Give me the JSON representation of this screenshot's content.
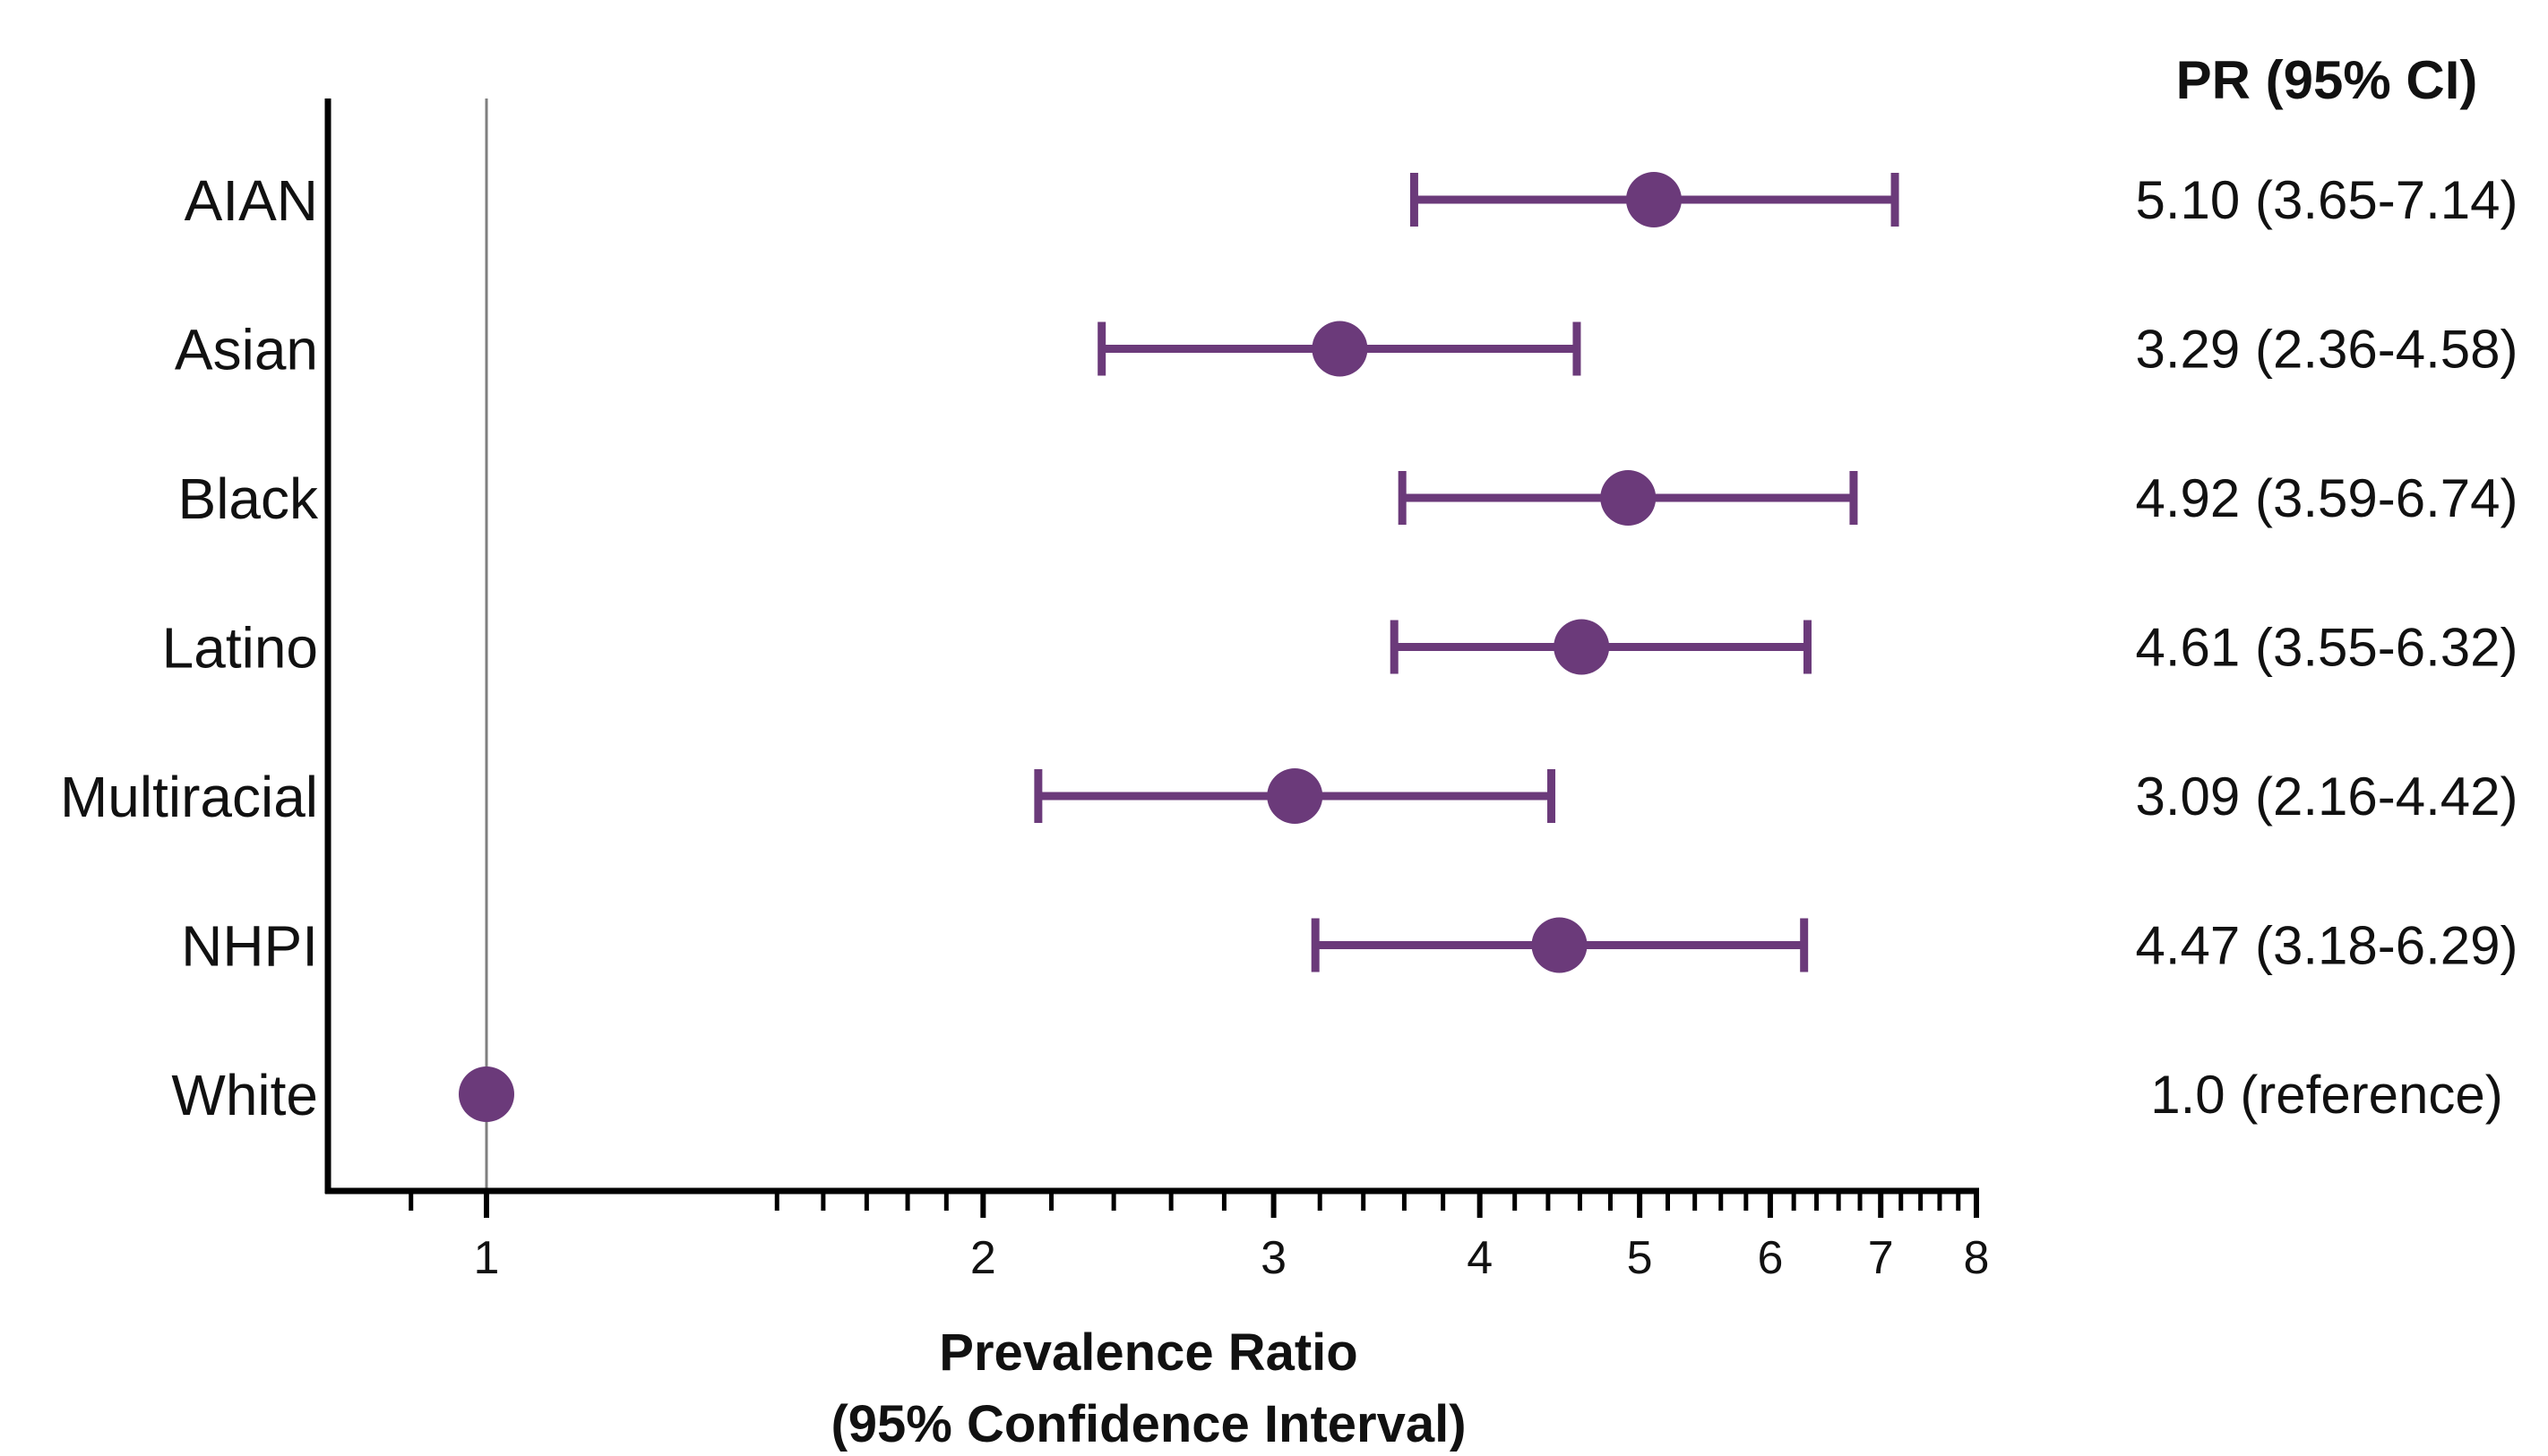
{
  "colors": {
    "marker": "#6b3a7a",
    "axis": "#000000",
    "reference_line": "#7f7f7f",
    "text": "#111111"
  },
  "chart_data": {
    "type": "scatter",
    "subtype": "forest-plot",
    "x_scale": "log",
    "xlim": [
      0.8,
      8
    ],
    "x_ticks": [
      1,
      2,
      3,
      4,
      5,
      6,
      7,
      8
    ],
    "x_tick_labels": [
      "1",
      "2",
      "3",
      "4",
      "5",
      "6",
      "7",
      "8"
    ],
    "x_minor_ticks": [
      0.9,
      1.5,
      1.6,
      1.7,
      1.8,
      1.9,
      2.2,
      2.4,
      2.6,
      2.8,
      3.2,
      3.4,
      3.6,
      3.8,
      4.2,
      4.4,
      4.6,
      4.8,
      5.2,
      5.4,
      5.6,
      5.8,
      6.2,
      6.4,
      6.6,
      6.8,
      7.2,
      7.4,
      7.6,
      7.8
    ],
    "reference_value": 1,
    "xlabel_line1": "Prevalence Ratio",
    "xlabel_line2": "(95% Confidence Interval)",
    "column_header": "PR (95% CI)",
    "rows": [
      {
        "label": "AIAN",
        "pr": 5.1,
        "lo": 3.65,
        "hi": 7.14,
        "text": "5.10 (3.65-7.14)"
      },
      {
        "label": "Asian",
        "pr": 3.29,
        "lo": 2.36,
        "hi": 4.58,
        "text": "3.29 (2.36-4.58)"
      },
      {
        "label": "Black",
        "pr": 4.92,
        "lo": 3.59,
        "hi": 6.74,
        "text": "4.92 (3.59-6.74)"
      },
      {
        "label": "Latino",
        "pr": 4.61,
        "lo": 3.55,
        "hi": 6.32,
        "text": "4.61 (3.55-6.32)"
      },
      {
        "label": "Multiracial",
        "pr": 3.09,
        "lo": 2.16,
        "hi": 4.42,
        "text": "3.09 (2.16-4.42)"
      },
      {
        "label": "NHPI",
        "pr": 4.47,
        "lo": 3.18,
        "hi": 6.29,
        "text": "4.47 (3.18-6.29)"
      },
      {
        "label": "White",
        "pr": 1.0,
        "lo": null,
        "hi": null,
        "text": "1.0 (reference)"
      }
    ]
  }
}
